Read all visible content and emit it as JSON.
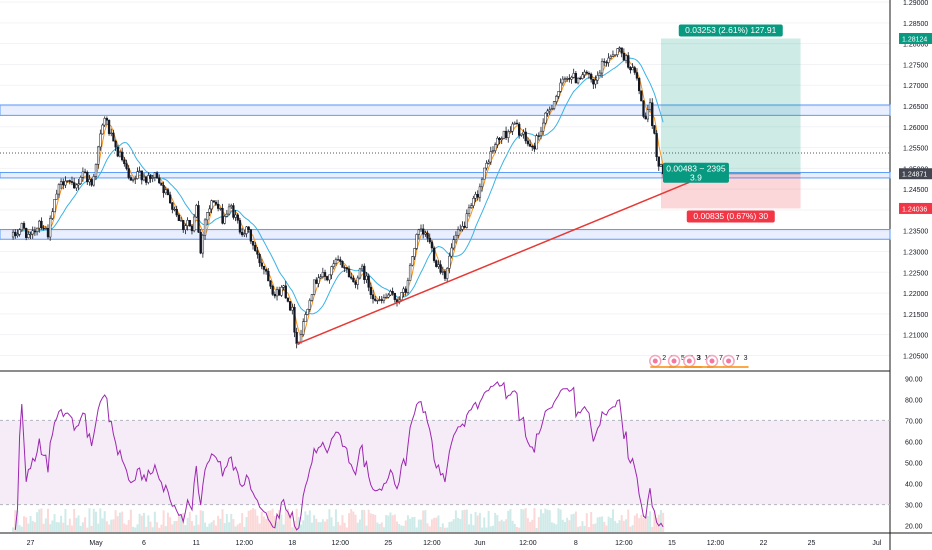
{
  "price_axis": {
    "ticks": [
      {
        "v": 1.29,
        "label": "1.29000"
      },
      {
        "v": 1.285,
        "label": "1.28500"
      },
      {
        "v": 1.28,
        "label": "1.28000"
      },
      {
        "v": 1.275,
        "label": "1.27500"
      },
      {
        "v": 1.27,
        "label": "1.27000"
      },
      {
        "v": 1.265,
        "label": "1.26500"
      },
      {
        "v": 1.26,
        "label": "1.26000"
      },
      {
        "v": 1.255,
        "label": "1.25500"
      },
      {
        "v": 1.25,
        "label": "1.25000"
      },
      {
        "v": 1.245,
        "label": "1.24500"
      },
      {
        "v": 1.24,
        "label": "1.24000"
      },
      {
        "v": 1.235,
        "label": "1.23500"
      },
      {
        "v": 1.23,
        "label": "1.23000"
      },
      {
        "v": 1.225,
        "label": "1.22500"
      },
      {
        "v": 1.22,
        "label": "1.22000"
      },
      {
        "v": 1.215,
        "label": "1.21500"
      },
      {
        "v": 1.21,
        "label": "1.21000"
      },
      {
        "v": 1.205,
        "label": "1.20500"
      }
    ],
    "badges": [
      {
        "v": 1.28124,
        "label": "1.28124",
        "color": "#089981"
      },
      {
        "v": 1.24871,
        "label": "1.24871",
        "color": "#434651"
      },
      {
        "v": 1.24036,
        "label": "1.24036",
        "color": "#f23645"
      }
    ]
  },
  "rsi_axis": {
    "ticks": [
      {
        "v": 90,
        "label": "90.00"
      },
      {
        "v": 80,
        "label": "80.00"
      },
      {
        "v": 70,
        "label": "70.00"
      },
      {
        "v": 60,
        "label": "60.00"
      },
      {
        "v": 50,
        "label": "50.00"
      },
      {
        "v": 40,
        "label": "40.00"
      },
      {
        "v": 30,
        "label": "30.00"
      },
      {
        "v": 20,
        "label": "20.00"
      }
    ],
    "upper_band": 70,
    "lower_band": 30
  },
  "time_axis": {
    "labels": [
      {
        "t": 4,
        "label": "27"
      },
      {
        "t": 19,
        "label": "May"
      },
      {
        "t": 30,
        "label": "6"
      },
      {
        "t": 42,
        "label": "11"
      },
      {
        "t": 53,
        "label": "12:00"
      },
      {
        "t": 64,
        "label": "18"
      },
      {
        "t": 75,
        "label": "12:00"
      },
      {
        "t": 86,
        "label": "25"
      },
      {
        "t": 96,
        "label": "12:00"
      },
      {
        "t": 107,
        "label": "Jun"
      },
      {
        "t": 118,
        "label": "12:00"
      },
      {
        "t": 129,
        "label": "8"
      },
      {
        "t": 140,
        "label": "12:00"
      },
      {
        "t": 151,
        "label": "15"
      },
      {
        "t": 161,
        "label": "12:00"
      },
      {
        "t": 172,
        "label": "22"
      },
      {
        "t": 183,
        "label": "25"
      },
      {
        "t": 198,
        "label": "Jul"
      }
    ]
  },
  "chart_data": {
    "type": "candlestick",
    "x_range": [
      -3,
      201
    ],
    "y_range": [
      1.2015,
      1.2905
    ],
    "price_path": [
      {
        "t": 0,
        "p": 1.2335
      },
      {
        "t": 2,
        "p": 1.236
      },
      {
        "t": 4,
        "p": 1.233
      },
      {
        "t": 6,
        "p": 1.2375
      },
      {
        "t": 8,
        "p": 1.2345
      },
      {
        "t": 10,
        "p": 1.244
      },
      {
        "t": 12,
        "p": 1.248
      },
      {
        "t": 14,
        "p": 1.2445
      },
      {
        "t": 16,
        "p": 1.2495
      },
      {
        "t": 18,
        "p": 1.246
      },
      {
        "t": 20,
        "p": 1.2575
      },
      {
        "t": 21,
        "p": 1.2625
      },
      {
        "t": 23,
        "p": 1.2555
      },
      {
        "t": 25,
        "p": 1.252
      },
      {
        "t": 27,
        "p": 1.246
      },
      {
        "t": 29,
        "p": 1.249
      },
      {
        "t": 31,
        "p": 1.247
      },
      {
        "t": 33,
        "p": 1.2485
      },
      {
        "t": 35,
        "p": 1.244
      },
      {
        "t": 37,
        "p": 1.2405
      },
      {
        "t": 39,
        "p": 1.236
      },
      {
        "t": 40,
        "p": 1.2375
      },
      {
        "t": 41,
        "p": 1.2345
      },
      {
        "t": 42,
        "p": 1.2405
      },
      {
        "t": 43,
        "p": 1.2295
      },
      {
        "t": 44,
        "p": 1.2385
      },
      {
        "t": 46,
        "p": 1.2425
      },
      {
        "t": 48,
        "p": 1.238
      },
      {
        "t": 50,
        "p": 1.2405
      },
      {
        "t": 52,
        "p": 1.2355
      },
      {
        "t": 54,
        "p": 1.2345
      },
      {
        "t": 56,
        "p": 1.2285
      },
      {
        "t": 58,
        "p": 1.2255
      },
      {
        "t": 60,
        "p": 1.2195
      },
      {
        "t": 62,
        "p": 1.2215
      },
      {
        "t": 64,
        "p": 1.2155
      },
      {
        "t": 65,
        "p": 1.208
      },
      {
        "t": 66,
        "p": 1.2105
      },
      {
        "t": 68,
        "p": 1.2195
      },
      {
        "t": 70,
        "p": 1.2245
      },
      {
        "t": 72,
        "p": 1.2235
      },
      {
        "t": 74,
        "p": 1.2275
      },
      {
        "t": 76,
        "p": 1.2265
      },
      {
        "t": 78,
        "p": 1.2225
      },
      {
        "t": 80,
        "p": 1.2255
      },
      {
        "t": 82,
        "p": 1.2205
      },
      {
        "t": 84,
        "p": 1.2175
      },
      {
        "t": 86,
        "p": 1.2195
      },
      {
        "t": 88,
        "p": 1.2185
      },
      {
        "t": 90,
        "p": 1.2205
      },
      {
        "t": 92,
        "p": 1.2315
      },
      {
        "t": 93,
        "p": 1.2345
      },
      {
        "t": 95,
        "p": 1.2335
      },
      {
        "t": 97,
        "p": 1.2275
      },
      {
        "t": 99,
        "p": 1.2245
      },
      {
        "t": 101,
        "p": 1.2325
      },
      {
        "t": 103,
        "p": 1.2355
      },
      {
        "t": 105,
        "p": 1.2405
      },
      {
        "t": 107,
        "p": 1.2455
      },
      {
        "t": 109,
        "p": 1.2525
      },
      {
        "t": 111,
        "p": 1.2565
      },
      {
        "t": 113,
        "p": 1.2585
      },
      {
        "t": 115,
        "p": 1.2605
      },
      {
        "t": 117,
        "p": 1.2575
      },
      {
        "t": 119,
        "p": 1.2545
      },
      {
        "t": 121,
        "p": 1.2595
      },
      {
        "t": 123,
        "p": 1.2645
      },
      {
        "t": 125,
        "p": 1.2685
      },
      {
        "t": 127,
        "p": 1.2725
      },
      {
        "t": 129,
        "p": 1.2715
      },
      {
        "t": 131,
        "p": 1.2735
      },
      {
        "t": 133,
        "p": 1.2695
      },
      {
        "t": 135,
        "p": 1.2745
      },
      {
        "t": 137,
        "p": 1.2775
      },
      {
        "t": 139,
        "p": 1.2785
      },
      {
        "t": 141,
        "p": 1.2755
      },
      {
        "t": 143,
        "p": 1.2715
      },
      {
        "t": 144,
        "p": 1.2655
      },
      {
        "t": 145,
        "p": 1.2615
      },
      {
        "t": 146,
        "p": 1.2645
      },
      {
        "t": 147,
        "p": 1.2575
      },
      {
        "t": 148,
        "p": 1.2505
      },
      {
        "t": 149,
        "p": 1.2487
      }
    ],
    "moving_averages": [
      {
        "color": "#f7931a",
        "period": 4
      },
      {
        "color": "#3bb3e4",
        "period": 14
      }
    ],
    "rsi": {
      "color": "#9c27b0",
      "period": 14,
      "range": [
        17,
        93
      ]
    },
    "horizontal_zones": [
      {
        "from": 1.26275,
        "to": 1.26525
      },
      {
        "from": 1.2477,
        "to": 1.249
      },
      {
        "from": 1.23295,
        "to": 1.2353
      }
    ],
    "dotted_level": 1.2537,
    "trendline": {
      "color": "#e53935",
      "from": {
        "t": 65,
        "p": 1.20775
      },
      "to": {
        "t": 155,
        "p": 1.24665
      }
    },
    "position": {
      "entry": 1.24871,
      "target": 1.28124,
      "stop": 1.24036,
      "t_start": 148.5,
      "t_end": 180.5,
      "target_label": "0.03253 (2.61%) 127.91",
      "mid_label_1": "0.00483 ~ 2395",
      "mid_label_2": "3.9",
      "stop_label": "0.00835 (0.67%) 30"
    },
    "event_markers": [
      {
        "t": 147.2,
        "labels": [
          "2",
          "3"
        ]
      },
      {
        "t": 151.5,
        "labels": [
          "5",
          "7",
          "3"
        ]
      },
      {
        "t": 155.0,
        "labels": [
          "3",
          "18"
        ]
      },
      {
        "t": 160.2,
        "labels": [
          "7"
        ]
      },
      {
        "t": 164.0,
        "labels": [
          "7",
          "3"
        ]
      }
    ]
  }
}
